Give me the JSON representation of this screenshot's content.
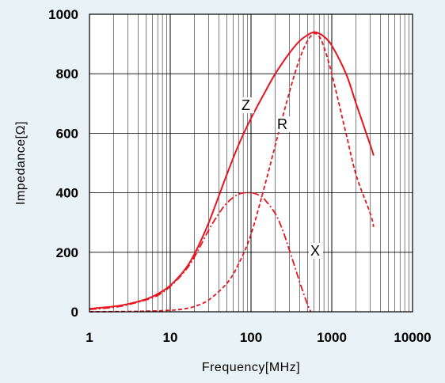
{
  "chart_data": {
    "type": "line",
    "title": "",
    "xlabel": "Frequency[MHz]",
    "ylabel": "Impedance[Ω]",
    "x_scale": "log",
    "xlim": [
      1,
      10000
    ],
    "ylim": [
      0,
      1000
    ],
    "x_ticks": [
      "1",
      "10",
      "100",
      "1000",
      "10000"
    ],
    "y_ticks": [
      "0",
      "200",
      "400",
      "600",
      "800",
      "1000"
    ],
    "x_tick_values": [
      1,
      10,
      100,
      1000,
      10000
    ],
    "y_tick_values": [
      0,
      200,
      400,
      600,
      800,
      1000
    ],
    "grid": true,
    "legend": "none",
    "colors": {
      "series": "#e8141e",
      "background": "#e9f3f7",
      "plot_area": "#ffffff",
      "grid": "#000000"
    },
    "series": [
      {
        "name": "Z",
        "style": "solid",
        "x": [
          1,
          2,
          3,
          5,
          7,
          10,
          15,
          20,
          30,
          50,
          70,
          100,
          150,
          200,
          300,
          400,
          500,
          600,
          700,
          800,
          1000,
          1500,
          2000,
          3000,
          3300
        ],
        "y": [
          10,
          18,
          26,
          42,
          60,
          88,
          140,
          195,
          300,
          460,
          560,
          650,
          740,
          800,
          870,
          910,
          930,
          940,
          935,
          925,
          895,
          800,
          700,
          560,
          525
        ]
      },
      {
        "name": "R",
        "style": "dashed",
        "x": [
          1,
          3,
          5,
          10,
          15,
          20,
          30,
          50,
          70,
          100,
          150,
          200,
          300,
          400,
          500,
          600,
          700,
          800,
          1000,
          1500,
          2000,
          3000,
          3300
        ],
        "y": [
          0,
          1,
          2,
          5,
          10,
          18,
          40,
          95,
          160,
          260,
          430,
          560,
          740,
          850,
          910,
          935,
          925,
          890,
          800,
          600,
          460,
          330,
          285
        ]
      },
      {
        "name": "X",
        "style": "dash-dot",
        "x": [
          1,
          2,
          3,
          5,
          7,
          10,
          15,
          20,
          30,
          40,
          50,
          70,
          100,
          130,
          150,
          200,
          250,
          300,
          350,
          400,
          450,
          500,
          550
        ],
        "y": [
          8,
          15,
          24,
          40,
          55,
          85,
          135,
          185,
          275,
          330,
          365,
          395,
          400,
          390,
          375,
          330,
          270,
          205,
          150,
          100,
          60,
          25,
          0
        ]
      }
    ],
    "annotations": [
      {
        "text": "Z",
        "series": "Z"
      },
      {
        "text": "R",
        "series": "R"
      },
      {
        "text": "X",
        "series": "X"
      }
    ]
  }
}
